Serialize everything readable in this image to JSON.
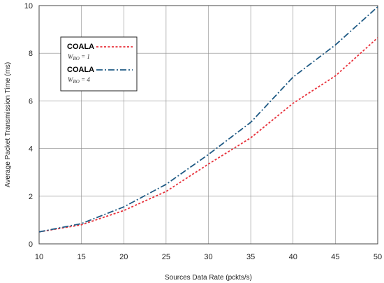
{
  "chart_data": {
    "type": "line",
    "xlabel": "Sources Data Rate (pckts/s)",
    "ylabel": "Average Packet Transmission Time (ms)",
    "xlim": [
      10,
      50
    ],
    "ylim": [
      0,
      10
    ],
    "xticks": [
      10,
      15,
      20,
      25,
      30,
      35,
      40,
      45,
      50
    ],
    "yticks": [
      0,
      2,
      4,
      6,
      8,
      10
    ],
    "grid": true,
    "legend_placement": "upper-left",
    "x": [
      10,
      15,
      20,
      25,
      30,
      35,
      40,
      45,
      50
    ],
    "series": [
      {
        "name": "COALA",
        "label_symbol": "W",
        "label_subscript": "BO",
        "label_value": "= 1",
        "color": "#e8303a",
        "line_style": "dotted",
        "values": [
          0.5,
          0.8,
          1.4,
          2.2,
          3.35,
          4.45,
          5.9,
          7.05,
          8.65
        ]
      },
      {
        "name": "COALA",
        "label_symbol": "W",
        "label_subscript": "BO",
        "label_value": "= 4",
        "color": "#1f5a84",
        "line_style": "dash-dot",
        "values": [
          0.5,
          0.85,
          1.55,
          2.5,
          3.75,
          5.1,
          7.0,
          8.35,
          9.95
        ]
      }
    ]
  }
}
